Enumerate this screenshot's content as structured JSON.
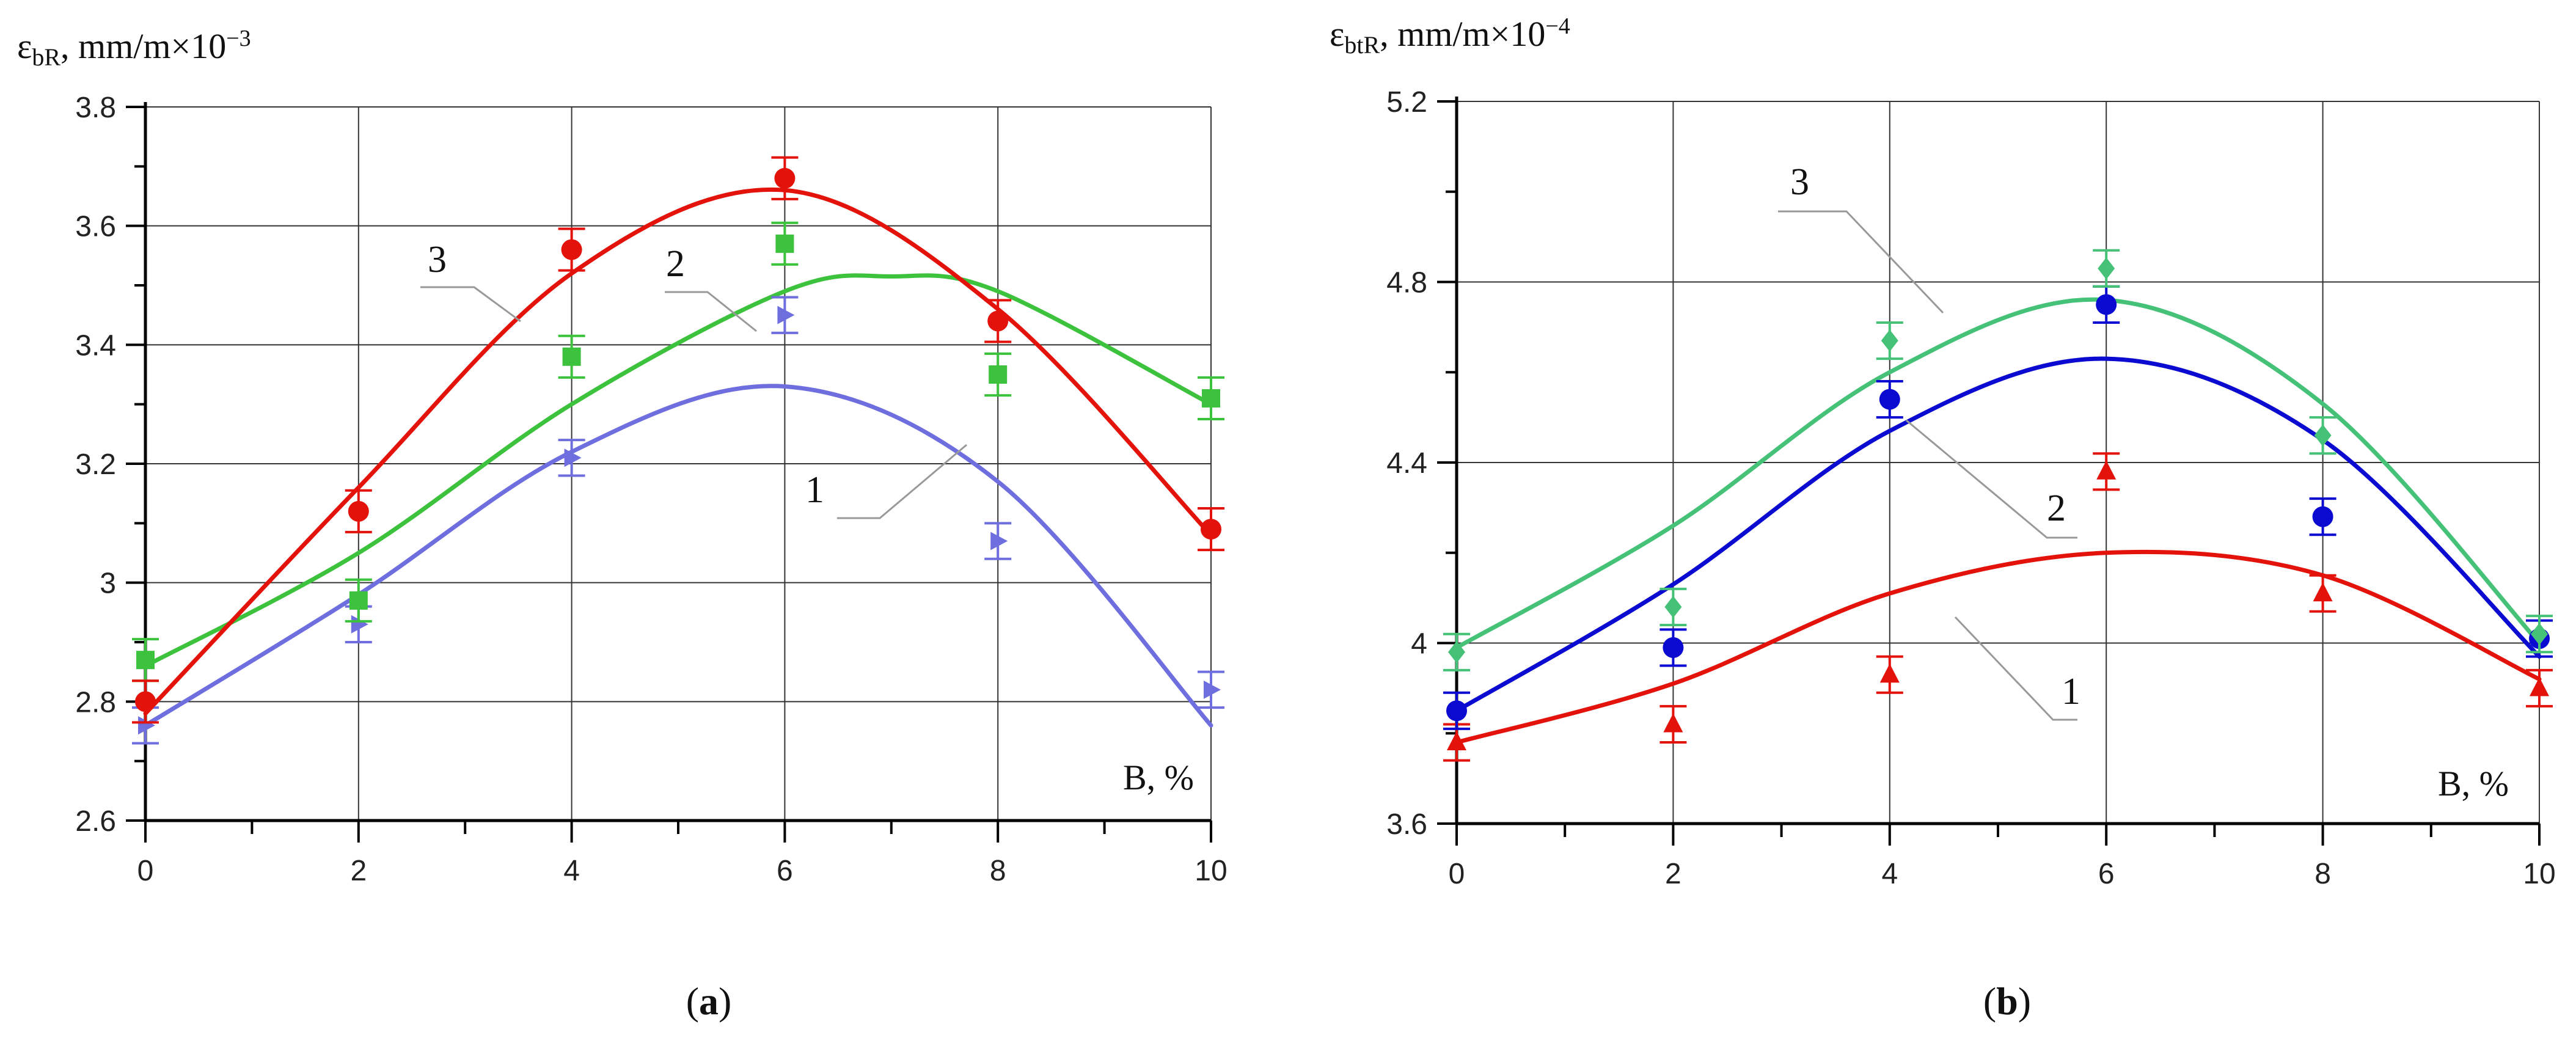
{
  "chart_data": [
    {
      "panel": "a",
      "type": "scatter",
      "caption": "(a)",
      "caption_pre": "(",
      "caption_letter": "a",
      "caption_post": ")",
      "ylabel_main": "ε",
      "ylabel_sub": "bR",
      "ylabel_units": ", mm/m×10",
      "ylabel_exp": "−3",
      "xlabel": "B, %",
      "xlim": [
        0,
        10
      ],
      "ylim": [
        2.6,
        3.8
      ],
      "x_ticks": [
        0,
        2,
        4,
        6,
        8,
        10
      ],
      "x_tick_labels": [
        "0",
        "2",
        "4",
        "6",
        "8",
        "10"
      ],
      "y_ticks": [
        2.6,
        2.8,
        3.0,
        3.2,
        3.4,
        3.6,
        3.8
      ],
      "y_tick_labels": [
        "2.6",
        "2.8",
        "3",
        "3.2",
        "3.4",
        "3.6",
        "3.8"
      ],
      "grid": true,
      "series": [
        {
          "name": "1",
          "color": "#6e6edf",
          "marker": "triangle-right",
          "x": [
            0,
            2,
            4,
            6,
            8,
            10
          ],
          "y": [
            2.76,
            2.93,
            3.21,
            3.45,
            3.07,
            2.82
          ],
          "err": 0.03,
          "fit_x": [
            0,
            2,
            4,
            6,
            8,
            10
          ],
          "fit_y": [
            2.76,
            2.98,
            3.22,
            3.33,
            3.17,
            2.76
          ]
        },
        {
          "name": "2",
          "color": "#3cc23c",
          "marker": "square",
          "x": [
            0,
            2,
            4,
            6,
            8,
            10
          ],
          "y": [
            2.87,
            2.97,
            3.38,
            3.57,
            3.35,
            3.31
          ],
          "err": 0.035,
          "fit_x": [
            0,
            2,
            4,
            6,
            7,
            8,
            10
          ],
          "fit_y": [
            2.86,
            3.05,
            3.3,
            3.49,
            3.515,
            3.49,
            3.3
          ]
        },
        {
          "name": "3",
          "color": "#e3120b",
          "marker": "circle",
          "x": [
            0,
            2,
            4,
            6,
            8,
            10
          ],
          "y": [
            2.8,
            3.12,
            3.56,
            3.68,
            3.44,
            3.09
          ],
          "err": 0.035,
          "fit_x": [
            0,
            2,
            4,
            6,
            8,
            10
          ],
          "fit_y": [
            2.78,
            3.16,
            3.52,
            3.66,
            3.46,
            3.08
          ]
        }
      ],
      "annotations": [
        "1",
        "2",
        "3"
      ]
    },
    {
      "panel": "b",
      "type": "scatter",
      "caption": "(b)",
      "caption_pre": "(",
      "caption_letter": "b",
      "caption_post": ")",
      "ylabel_main": "ε",
      "ylabel_sub": "btR",
      "ylabel_units": ", mm/m×10",
      "ylabel_exp": "−4",
      "xlabel": "B, %",
      "xlim": [
        0,
        10
      ],
      "ylim": [
        3.6,
        5.2
      ],
      "x_ticks": [
        0,
        2,
        4,
        6,
        8,
        10
      ],
      "x_tick_labels": [
        "0",
        "2",
        "4",
        "6",
        "8",
        "10"
      ],
      "y_ticks": [
        3.6,
        4.0,
        4.4,
        4.8,
        5.2
      ],
      "y_tick_labels": [
        "3.6",
        "4",
        "4.4",
        "4.8",
        "5.2"
      ],
      "grid": true,
      "series": [
        {
          "name": "1",
          "color": "#e3120b",
          "marker": "triangle-up",
          "x": [
            0,
            2,
            4,
            6,
            8,
            10
          ],
          "y": [
            3.78,
            3.82,
            3.93,
            4.38,
            4.11,
            3.9
          ],
          "err": 0.04,
          "fit_x": [
            0,
            2,
            4,
            6,
            8,
            10
          ],
          "fit_y": [
            3.78,
            3.91,
            4.11,
            4.2,
            4.15,
            3.92
          ]
        },
        {
          "name": "2",
          "color": "#0a0ad0",
          "marker": "circle",
          "x": [
            0,
            2,
            4,
            6,
            8,
            10
          ],
          "y": [
            3.85,
            3.99,
            4.54,
            4.75,
            4.28,
            4.01
          ],
          "err": 0.04,
          "fit_x": [
            0,
            2,
            4,
            6,
            8,
            10
          ],
          "fit_y": [
            3.85,
            4.13,
            4.47,
            4.63,
            4.45,
            3.97
          ]
        },
        {
          "name": "3",
          "color": "#45c277",
          "marker": "diamond",
          "x": [
            0,
            2,
            4,
            6,
            8,
            10
          ],
          "y": [
            3.98,
            4.08,
            4.67,
            4.83,
            4.46,
            4.02
          ],
          "err": 0.04,
          "fit_x": [
            0,
            2,
            4,
            6,
            8,
            10
          ],
          "fit_y": [
            3.99,
            4.26,
            4.6,
            4.76,
            4.53,
            4.0
          ]
        }
      ],
      "annotations": [
        "1",
        "2",
        "3"
      ]
    }
  ]
}
